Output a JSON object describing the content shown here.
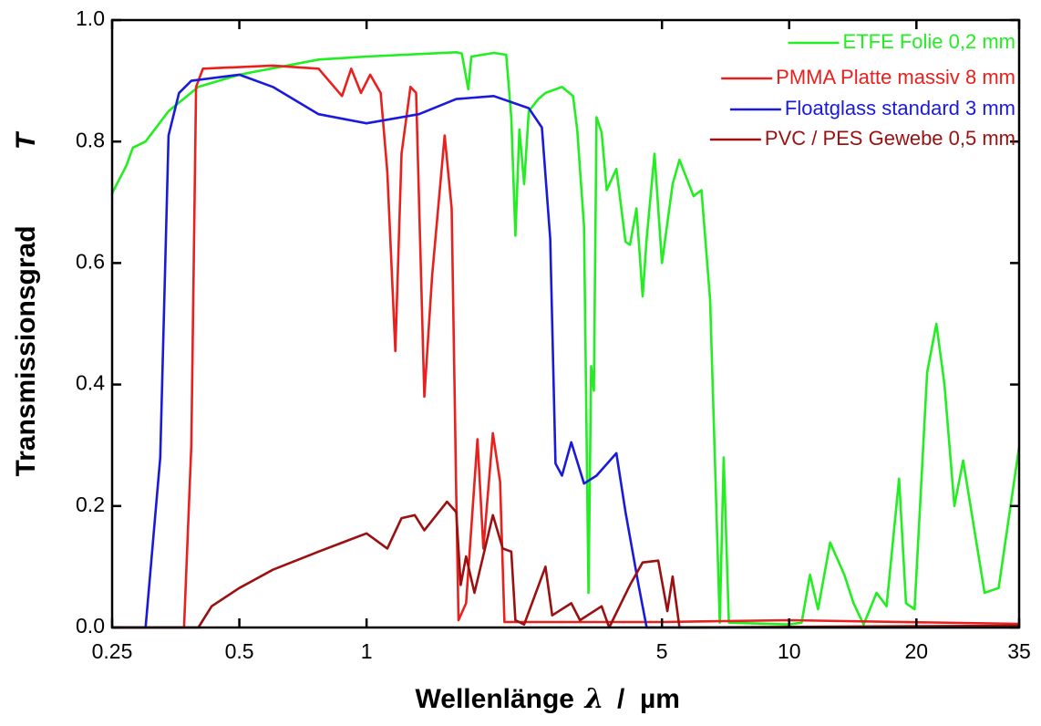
{
  "chart_data": {
    "type": "line",
    "xlabel": "Wellenlänge",
    "xlabel_symbol": "λ",
    "xlabel_unit": "/  µm",
    "ylabel": "Transmissionsgrad",
    "ylabel_symbol": "T",
    "xscale": "log",
    "xlim": [
      0.25,
      35
    ],
    "ylim": [
      0,
      1
    ],
    "xticks": [
      0.25,
      0.5,
      1,
      5,
      10,
      20,
      35
    ],
    "yticks": [
      {
        "value": 0,
        "label": "0.0"
      },
      0.2,
      0.4,
      0.6,
      0.8,
      {
        "value": 1,
        "label": "1.0"
      }
    ],
    "legend": "top-right",
    "series": [
      {
        "name": "ETFE Folie  0,2 mm",
        "color": "#22ee22",
        "x": [
          0.25,
          0.27,
          0.28,
          0.3,
          0.34,
          0.4,
          0.5,
          0.77,
          1,
          1.63,
          1.68,
          1.74,
          1.77,
          2,
          2.14,
          2.2,
          2.25,
          2.3,
          2.36,
          2.42,
          2.55,
          2.65,
          2.9,
          3.08,
          3.15,
          3.27,
          3.35,
          3.4,
          3.45,
          3.5,
          3.6,
          3.7,
          3.9,
          4.1,
          4.2,
          4.35,
          4.5,
          4.6,
          4.8,
          5,
          5.3,
          5.5,
          5.94,
          6.2,
          6.5,
          6.85,
          7.0,
          7.2,
          10,
          10.7,
          11.2,
          11.7,
          12.5,
          13.5,
          14.2,
          15,
          16.1,
          17,
          18.2,
          18.9,
          19.8,
          21.2,
          22.3,
          23.3,
          24.6,
          25.8,
          29,
          31.3,
          35
        ],
        "values": [
          0.715,
          0.76,
          0.79,
          0.8,
          0.85,
          0.89,
          0.91,
          0.935,
          0.94,
          0.947,
          0.945,
          0.886,
          0.94,
          0.946,
          0.943,
          0.84,
          0.645,
          0.82,
          0.73,
          0.85,
          0.87,
          0.88,
          0.89,
          0.875,
          0.82,
          0.66,
          0.057,
          0.43,
          0.39,
          0.84,
          0.815,
          0.72,
          0.755,
          0.635,
          0.63,
          0.69,
          0.545,
          0.64,
          0.78,
          0.6,
          0.73,
          0.77,
          0.71,
          0.72,
          0.54,
          0.008,
          0.28,
          0.008,
          0.005,
          0.008,
          0.087,
          0.03,
          0.14,
          0.087,
          0.04,
          0.005,
          0.057,
          0.035,
          0.245,
          0.04,
          0.03,
          0.42,
          0.5,
          0.4,
          0.2,
          0.275,
          0.057,
          0.065,
          0.297
        ]
      },
      {
        "name": "PMMA Platte massiv 8 mm",
        "color": "#e8201e",
        "x": [
          0.25,
          0.37,
          0.385,
          0.395,
          0.41,
          0.6,
          0.77,
          0.875,
          0.92,
          0.97,
          1.02,
          1.08,
          1.12,
          1.17,
          1.21,
          1.27,
          1.31,
          1.37,
          1.43,
          1.53,
          1.59,
          1.63,
          1.65,
          1.72,
          1.83,
          1.89,
          1.99,
          2.07,
          2.12,
          5,
          10,
          35
        ],
        "values": [
          0,
          0,
          0.3,
          0.89,
          0.92,
          0.925,
          0.92,
          0.875,
          0.92,
          0.88,
          0.91,
          0.88,
          0.75,
          0.455,
          0.78,
          0.89,
          0.88,
          0.38,
          0.58,
          0.81,
          0.69,
          0.22,
          0.012,
          0.04,
          0.31,
          0.13,
          0.32,
          0.24,
          0.009,
          0.009,
          0.012,
          0.006
        ]
      },
      {
        "name": "Floatglass standard 3 mm",
        "color": "#1a1adb",
        "x": [
          0.25,
          0.3,
          0.325,
          0.34,
          0.36,
          0.385,
          0.5,
          0.6,
          0.77,
          1,
          1.33,
          1.63,
          2,
          2.42,
          2.6,
          2.72,
          2.8,
          2.9,
          3.05,
          3.27,
          3.5,
          3.9,
          4.1,
          4.4,
          4.6,
          35
        ],
        "values": [
          0,
          0,
          0.28,
          0.81,
          0.88,
          0.9,
          0.91,
          0.89,
          0.845,
          0.83,
          0.845,
          0.87,
          0.875,
          0.855,
          0.823,
          0.64,
          0.27,
          0.25,
          0.305,
          0.237,
          0.25,
          0.287,
          0.19,
          0.07,
          0,
          0
        ]
      },
      {
        "name": "PVC / PES Gewebe 0,5 mm",
        "color": "#9b1010",
        "x": [
          0.25,
          0.4,
          0.43,
          0.5,
          0.6,
          0.77,
          1,
          1.12,
          1.21,
          1.3,
          1.37,
          1.55,
          1.63,
          1.67,
          1.72,
          1.8,
          1.99,
          2.1,
          2.2,
          2.25,
          2.36,
          2.65,
          2.75,
          3.05,
          3.2,
          3.6,
          3.75,
          4.2,
          4.5,
          4.9,
          5.15,
          5.3,
          5.5,
          35
        ],
        "values": [
          0,
          0,
          0.035,
          0.065,
          0.095,
          0.125,
          0.155,
          0.13,
          0.18,
          0.185,
          0.16,
          0.207,
          0.19,
          0.07,
          0.117,
          0.057,
          0.185,
          0.13,
          0.125,
          0.012,
          0.005,
          0.1,
          0.02,
          0.04,
          0.012,
          0.035,
          0,
          0.07,
          0.107,
          0.11,
          0.027,
          0.084,
          0,
          0.003
        ]
      }
    ]
  }
}
